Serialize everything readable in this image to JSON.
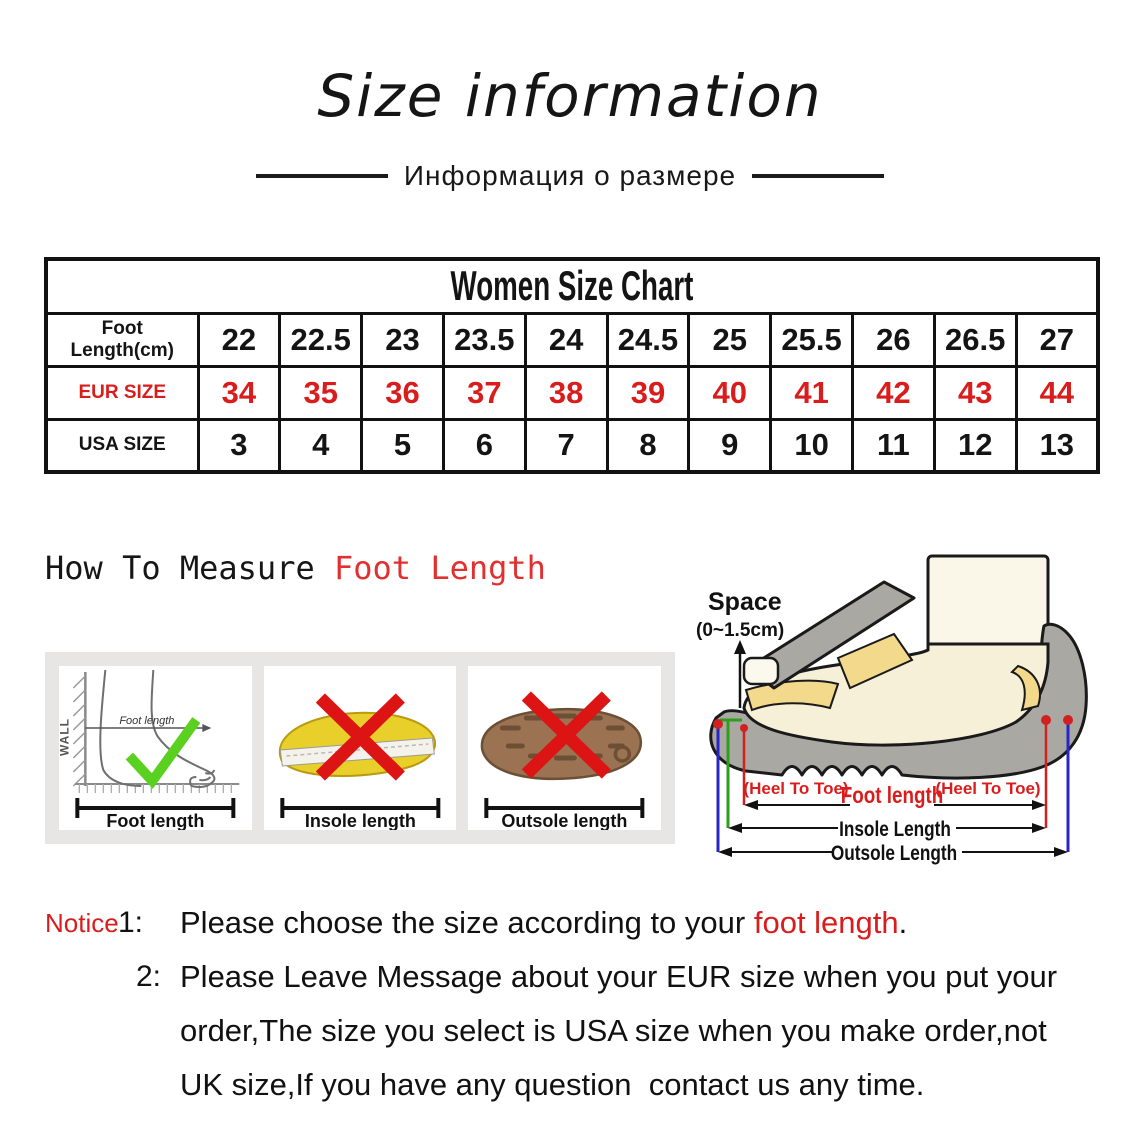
{
  "page": {
    "title": "Size information",
    "subtitle": "Информация о размере"
  },
  "size_chart": {
    "title": "Women Size Chart",
    "rows": [
      {
        "label": "Foot Length(cm)",
        "color": "black",
        "values": [
          "22",
          "22.5",
          "23",
          "23.5",
          "24",
          "24.5",
          "25",
          "25.5",
          "26",
          "26.5",
          "27"
        ]
      },
      {
        "label": "EUR SIZE",
        "color": "red",
        "values": [
          "34",
          "35",
          "36",
          "37",
          "38",
          "39",
          "40",
          "41",
          "42",
          "43",
          "44"
        ]
      },
      {
        "label": "USA SIZE",
        "color": "black",
        "values": [
          "3",
          "4",
          "5",
          "6",
          "7",
          "8",
          "9",
          "10",
          "11",
          "12",
          "13"
        ]
      }
    ]
  },
  "how_to_measure": {
    "black_part": "How To Measure ",
    "red_part": "Foot Length"
  },
  "illustrations": {
    "wall_label": "WALL",
    "foot_inner_label": "Foot length",
    "panels": [
      {
        "label": "Foot length",
        "mark": "check"
      },
      {
        "label": "Insole length",
        "mark": "cross"
      },
      {
        "label": "Outsole length",
        "mark": "cross"
      }
    ]
  },
  "diagram": {
    "space_title": "Space",
    "space_range": "(0~1.5cm)",
    "heel_to_toe_left": "(Heel To Toe)",
    "heel_to_toe_right": "(Heel To Toe)",
    "foot_length": "Foot length",
    "insole_length": "Insole Length",
    "outsole_length": "Outsole Length"
  },
  "notice": {
    "label": "Notice",
    "item1_number": "1:",
    "item1_text": "Please choose the size according to your ",
    "item1_highlight": "foot length",
    "item1_end": ".",
    "item2_number": "2:",
    "item2_line1": "Please Leave Message about your EUR size when you put your",
    "item2_line2": "order,The size you select is USA size when you make order,not",
    "item2_line3": "UK size,If you have any question  contact us any time."
  },
  "colors": {
    "accent_red": "#d91d1d",
    "check_green": "#5ad01f",
    "cross_red": "#dd1414",
    "insole_yellow": "#e9cf2a",
    "outsole_brown": "#9b7352",
    "shoe_gray": "#aaa8a3",
    "foot_cream": "#f6f0d8",
    "strap_yellow": "#f2d98c",
    "measure_blue": "#2a23c8",
    "measure_green": "#2f9e1f",
    "measure_red": "#d02020"
  }
}
